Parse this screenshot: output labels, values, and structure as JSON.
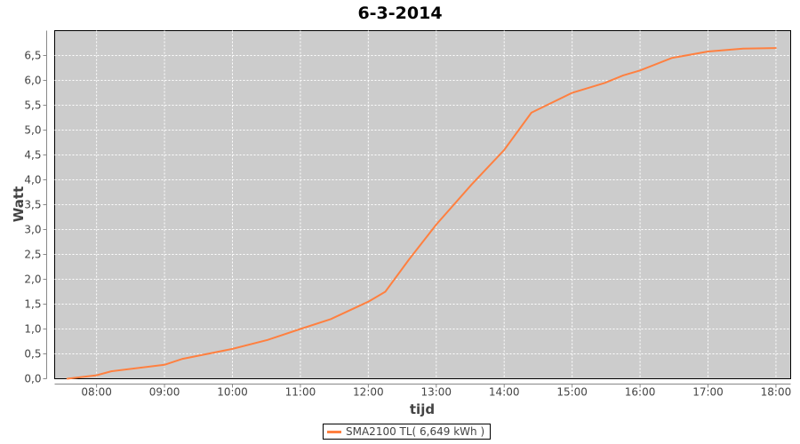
{
  "chart_data": {
    "type": "line",
    "title": "6-3-2014",
    "xlabel": "tijd",
    "ylabel": "Watt",
    "xlim": [
      "07:23",
      "18:13"
    ],
    "ylim": [
      0,
      7.0
    ],
    "x_ticks": [
      "08:00",
      "09:00",
      "10:00",
      "11:00",
      "12:00",
      "13:00",
      "14:00",
      "15:00",
      "16:00",
      "17:00",
      "18:00"
    ],
    "y_ticks": [
      "0,0",
      "0,5",
      "1,0",
      "1,5",
      "2,0",
      "2,5",
      "3,0",
      "3,5",
      "4,0",
      "4,5",
      "5,0",
      "5,5",
      "6,0",
      "6,5"
    ],
    "grid": true,
    "legend": "bottom",
    "series": [
      {
        "name": "SMA2100 TL( 6,649 kWh )",
        "color": "#ff8040",
        "x": [
          "07:34",
          "08:00",
          "08:13",
          "09:00",
          "09:16",
          "10:00",
          "10:31",
          "11:00",
          "11:27",
          "12:00",
          "12:15",
          "12:36",
          "13:00",
          "13:31",
          "14:00",
          "14:24",
          "15:00",
          "15:29",
          "15:45",
          "16:00",
          "16:28",
          "17:00",
          "17:31",
          "18:00"
        ],
        "y": [
          0.0,
          0.07,
          0.15,
          0.28,
          0.4,
          0.6,
          0.78,
          1.0,
          1.2,
          1.55,
          1.75,
          2.4,
          3.1,
          3.9,
          4.6,
          5.35,
          5.75,
          5.95,
          6.1,
          6.2,
          6.45,
          6.58,
          6.64,
          6.65
        ]
      }
    ]
  }
}
